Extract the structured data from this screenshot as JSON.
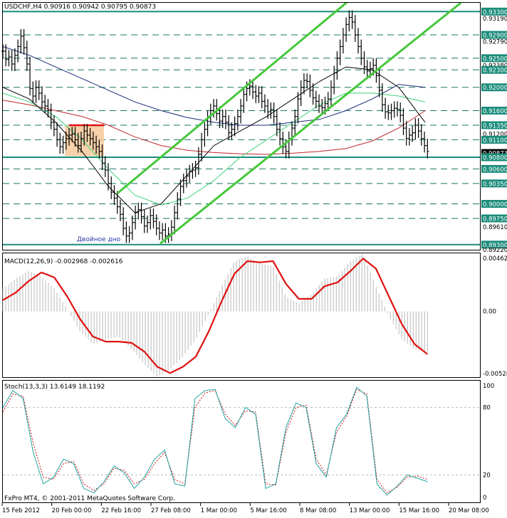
{
  "header": {
    "symbol_text": "USDCHF,H4  0.90916 0.90942 0.90795 0.90873",
    "macd_text": "MACD(12,26,9) -0.002968 -0.002616",
    "stoch_text": "Stoch(13,3,3) 13.6149 18.1192",
    "copyright": "FxPro MT4, © 2001-2011 MetaQuotes Software Corp."
  },
  "annotations": {
    "pattern_label": "Двойное дно"
  },
  "colors": {
    "channel": "#46c83c",
    "resistance": "#1a8c7a",
    "dashed": "#1a7565",
    "ma_red": "#c0282b",
    "ma_blue": "#1c2a7a",
    "ma_green": "#3ed27c",
    "ma_black": "#000000",
    "macd_signal": "#e01010",
    "macd_hist": "#b8b8b8",
    "stoch_main": "#22a3a3",
    "stoch_signal": "#d01010",
    "zone_fill": "#f7c99b",
    "zone_top": "#e01010",
    "price_box": "#1a8c7a"
  },
  "chart_data": [
    {
      "type": "line",
      "title": "USDCHF,H4",
      "ohlc": {
        "open": 0.90916,
        "high": 0.90942,
        "low": 0.90795,
        "close": 0.90873
      },
      "ylim": [
        0.892,
        0.9345
      ],
      "x_tick_labels": [
        "15 Feb 2012",
        "20 Feb 00:00",
        "22 Feb 16:00",
        "27 Feb 08:00",
        "1 Mar 00:00",
        "5 Mar 16:00",
        "8 Mar 08:00",
        "13 Mar 00:00",
        "15 Mar 16:00",
        "20 Mar 08:00"
      ],
      "y_tick_labels": [
        "0.93300",
        "0.93190",
        "0.92900",
        "0.92790",
        "0.92500",
        "0.92380",
        "0.92300",
        "0.92000",
        "0.91600",
        "0.91350",
        "0.91200",
        "0.91100",
        "0.90873",
        "0.90800",
        "0.90600",
        "0.90350",
        "0.90000",
        "0.89750",
        "0.89610",
        "0.89300",
        "0.89220"
      ],
      "levels_dashed": [
        0.929,
        0.925,
        0.923,
        0.92,
        0.916,
        0.9135,
        0.911,
        0.906,
        0.9035,
        0.9,
        0.8975
      ],
      "levels_solid": [
        0.933,
        0.908,
        0.893
      ],
      "boxed_levels": [
        0.933,
        0.929,
        0.925,
        0.923,
        0.92,
        0.916,
        0.9135,
        0.911,
        0.908,
        0.906,
        0.9035,
        0.9,
        0.8975,
        0.893
      ],
      "current_price": 0.90873,
      "close_series": [
        0.9262,
        0.9248,
        0.9252,
        0.924,
        0.9255,
        0.927,
        0.9288,
        0.9268,
        0.924,
        0.9198,
        0.9185,
        0.92,
        0.919,
        0.9175,
        0.9168,
        0.916,
        0.914,
        0.9128,
        0.911,
        0.9098,
        0.9105,
        0.9112,
        0.9118,
        0.912,
        0.911,
        0.91,
        0.9112,
        0.9125,
        0.9118,
        0.9112,
        0.9105,
        0.9098,
        0.909,
        0.907,
        0.9058,
        0.9035,
        0.902,
        0.901,
        0.8995,
        0.8982,
        0.8958,
        0.8945,
        0.895,
        0.8968,
        0.8985,
        0.899,
        0.8978,
        0.8962,
        0.8968,
        0.898,
        0.897,
        0.8958,
        0.895,
        0.8955,
        0.8945,
        0.8948,
        0.896,
        0.8985,
        0.9008,
        0.903,
        0.904,
        0.9048,
        0.9055,
        0.9058,
        0.9062,
        0.9085,
        0.911,
        0.9128,
        0.9148,
        0.916,
        0.9168,
        0.9155,
        0.9142,
        0.915,
        0.914,
        0.9122,
        0.9128,
        0.9138,
        0.915,
        0.9168,
        0.9188,
        0.9198,
        0.9202,
        0.9192,
        0.9185,
        0.919,
        0.9176,
        0.9168,
        0.9158,
        0.9162,
        0.915,
        0.9128,
        0.9112,
        0.9098,
        0.909,
        0.9112,
        0.913,
        0.915,
        0.918,
        0.92,
        0.9212,
        0.921,
        0.9195,
        0.9182,
        0.9176,
        0.9168,
        0.9165,
        0.9172,
        0.918,
        0.92,
        0.9225,
        0.925,
        0.927,
        0.929,
        0.9308,
        0.932,
        0.9312,
        0.929,
        0.927,
        0.925,
        0.9235,
        0.9228,
        0.9232,
        0.9238,
        0.922,
        0.9195,
        0.917,
        0.9158,
        0.9156,
        0.916,
        0.9164,
        0.9162,
        0.9152,
        0.913,
        0.9112,
        0.9118,
        0.9122,
        0.9135,
        0.9125,
        0.9112,
        0.91,
        0.909
      ],
      "zone": {
        "top": 0.9135,
        "bottom": 0.9082,
        "start_fraction": 0.13,
        "end_fraction": 0.212
      },
      "channel_lines": [
        {
          "from": {
            "fraction": 0.24,
            "price": 0.9018
          },
          "to": {
            "fraction": 0.73,
            "price": 0.9352
          }
        },
        {
          "from": {
            "fraction": 0.33,
            "price": 0.8932
          },
          "to": {
            "fraction": 0.96,
            "price": 0.9345
          }
        }
      ],
      "moving_averages": [
        {
          "name": "blue",
          "values": [
            0.927,
            0.9255,
            0.9235,
            0.9215,
            0.9195,
            0.9175,
            0.916,
            0.9148,
            0.914,
            0.9135,
            0.9135,
            0.914,
            0.9145,
            0.916,
            0.918,
            0.9205,
            0.92
          ]
        },
        {
          "name": "red",
          "values": [
            0.9178,
            0.917,
            0.916,
            0.915,
            0.9135,
            0.9115,
            0.91,
            0.9092,
            0.9088,
            0.9086,
            0.9085,
            0.9087,
            0.909,
            0.9095,
            0.9108,
            0.913,
            0.916
          ]
        },
        {
          "name": "green",
          "values": [
            0.919,
            0.9175,
            0.915,
            0.911,
            0.906,
            0.9015,
            0.8998,
            0.901,
            0.904,
            0.908,
            0.911,
            0.914,
            0.917,
            0.919,
            0.919,
            0.9185,
            0.9175
          ]
        },
        {
          "name": "black",
          "values": [
            0.92,
            0.918,
            0.914,
            0.909,
            0.903,
            0.8985,
            0.9,
            0.905,
            0.91,
            0.9125,
            0.915,
            0.918,
            0.921,
            0.9235,
            0.923,
            0.92,
            0.914
          ]
        }
      ]
    },
    {
      "type": "line",
      "title": "MACD(12,26,9)",
      "ylim": [
        -0.00528,
        0.00462
      ],
      "y_tick_labels": [
        "0.00462",
        "0.00",
        "-0.00528"
      ],
      "series": [
        {
          "name": "signal",
          "values": [
            0.0009,
            0.0015,
            0.0024,
            0.0031,
            0.0027,
            0.0012,
            -0.0006,
            -0.002,
            -0.0024,
            -0.0024,
            -0.0025,
            -0.0032,
            -0.0044,
            -0.0049,
            -0.0044,
            -0.0036,
            -0.0016,
            0.0008,
            0.003,
            0.004,
            0.0039,
            0.004,
            0.0022,
            0.001,
            0.001,
            0.002,
            0.0023,
            0.0032,
            0.0042,
            0.0034,
            0.0012,
            -0.001,
            -0.0026,
            -0.0034
          ]
        },
        {
          "name": "histogram",
          "values": [
            0.0018,
            0.0026,
            0.0032,
            0.0028,
            0.0018,
            0.0002,
            -0.0016,
            -0.0026,
            -0.0022,
            -0.002,
            -0.003,
            -0.0042,
            -0.0052,
            -0.0046,
            -0.0036,
            -0.0022,
            -0.0002,
            0.002,
            0.004,
            0.0044,
            0.0038,
            0.0036,
            0.0012,
            0.0006,
            0.0014,
            0.0026,
            0.0028,
            0.004,
            0.0046,
            0.002,
            -0.0004,
            -0.0022,
            -0.003,
            -0.0032
          ]
        }
      ]
    },
    {
      "type": "line",
      "title": "Stoch(13,3,3)",
      "ylim": [
        0,
        100
      ],
      "y_tick_labels": [
        "100",
        "80",
        "20",
        "0"
      ],
      "series": [
        {
          "name": "main",
          "values": [
            80,
            95,
            88,
            40,
            12,
            18,
            34,
            30,
            8,
            4,
            14,
            28,
            22,
            8,
            18,
            34,
            42,
            12,
            10,
            88,
            95,
            96,
            70,
            62,
            80,
            74,
            8,
            12,
            62,
            84,
            80,
            30,
            18,
            62,
            74,
            98,
            90,
            12,
            2,
            10,
            20,
            17,
            14
          ]
        },
        {
          "name": "signal",
          "values": [
            76,
            92,
            90,
            48,
            18,
            16,
            30,
            32,
            12,
            6,
            12,
            26,
            24,
            12,
            16,
            30,
            40,
            16,
            12,
            80,
            93,
            95,
            74,
            64,
            77,
            76,
            12,
            11,
            58,
            80,
            82,
            34,
            20,
            58,
            72,
            96,
            92,
            16,
            4,
            9,
            18,
            19,
            16
          ]
        }
      ]
    }
  ]
}
